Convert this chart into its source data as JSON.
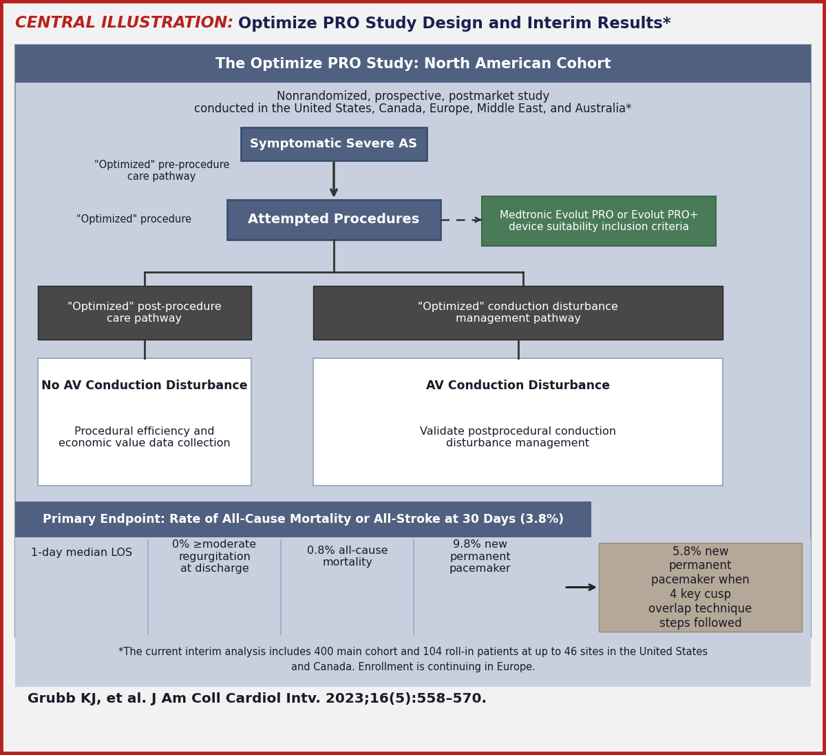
{
  "title_red": "CENTRAL ILLUSTRATION:",
  "title_blue": " Optimize PRO Study Design and Interim Results*",
  "bg_outer": "#f2f2f2",
  "bg_inner": "#c5cdd e",
  "header_bg": "#506080",
  "header_text": "The Optimize PRO Study: North American Cohort",
  "subtitle_line1": "Nonrandomized, prospective, postmarket study",
  "subtitle_line2": "conducted in the United States, Canada, Europe, Middle East, and Australia*",
  "box1_text": "Symptomatic Severe AS",
  "box1_bg": "#506080",
  "label_preprocedure": "\"Optimized\" pre-procedure\ncare pathway",
  "box2_text": "Attempted Procedures",
  "box2_bg": "#506080",
  "label_procedure": "\"Optimized\" procedure",
  "green_box_text": "Medtronic Evolut PRO or Evolut PRO+\ndevice suitability inclusion criteria",
  "green_box_bg": "#4a7a58",
  "dark_box1_text": "\"Optimized\" post-procedure\ncare pathway",
  "dark_box1_bg": "#484848",
  "dark_box2_text": "\"Optimized\" conduction disturbance\nmanagement pathway",
  "dark_box2_bg": "#484848",
  "white_box1_title": "No AV Conduction Disturbance",
  "white_box1_body": "Procedural efficiency and\neconomic value data collection",
  "white_box2_title": "AV Conduction Disturbance",
  "white_box2_body": "Validate postprocedural conduction\ndisturbance management",
  "primary_endpoint_bg": "#506080",
  "primary_endpoint_text": "Primary Endpoint: Rate of All-Cause Mortality or All-Stroke at 30 Days (3.8%)",
  "stat1": "1-day median LOS",
  "stat2": "0% ≥moderate\nregurgitation\nat discharge",
  "stat3": "0.8% all-cause\nmortality",
  "stat4": "9.8% new\npermanent\npacemaker",
  "stat5_bg": "#b5a898",
  "stat5_text": "5.8% new\npermanent\npacemaker when\n4 key cusp\noverlap technique\nsteps followed",
  "footnote_line1": "*The current interim analysis includes 400 main cohort and 104 roll-in patients at up to 46 sites in the United States",
  "footnote_line2": "and Canada. Enrollment is continuing in Europe.",
  "citation": "Grubb KJ, et al. J Am Coll Cardiol Intv. 2023;16(5):558–570.",
  "border_color_red": "#b82020",
  "col_line_color": "#9aacbe",
  "dark_text": "#1a1a2a",
  "white": "#ffffff",
  "light_bg": "#c8d0df"
}
